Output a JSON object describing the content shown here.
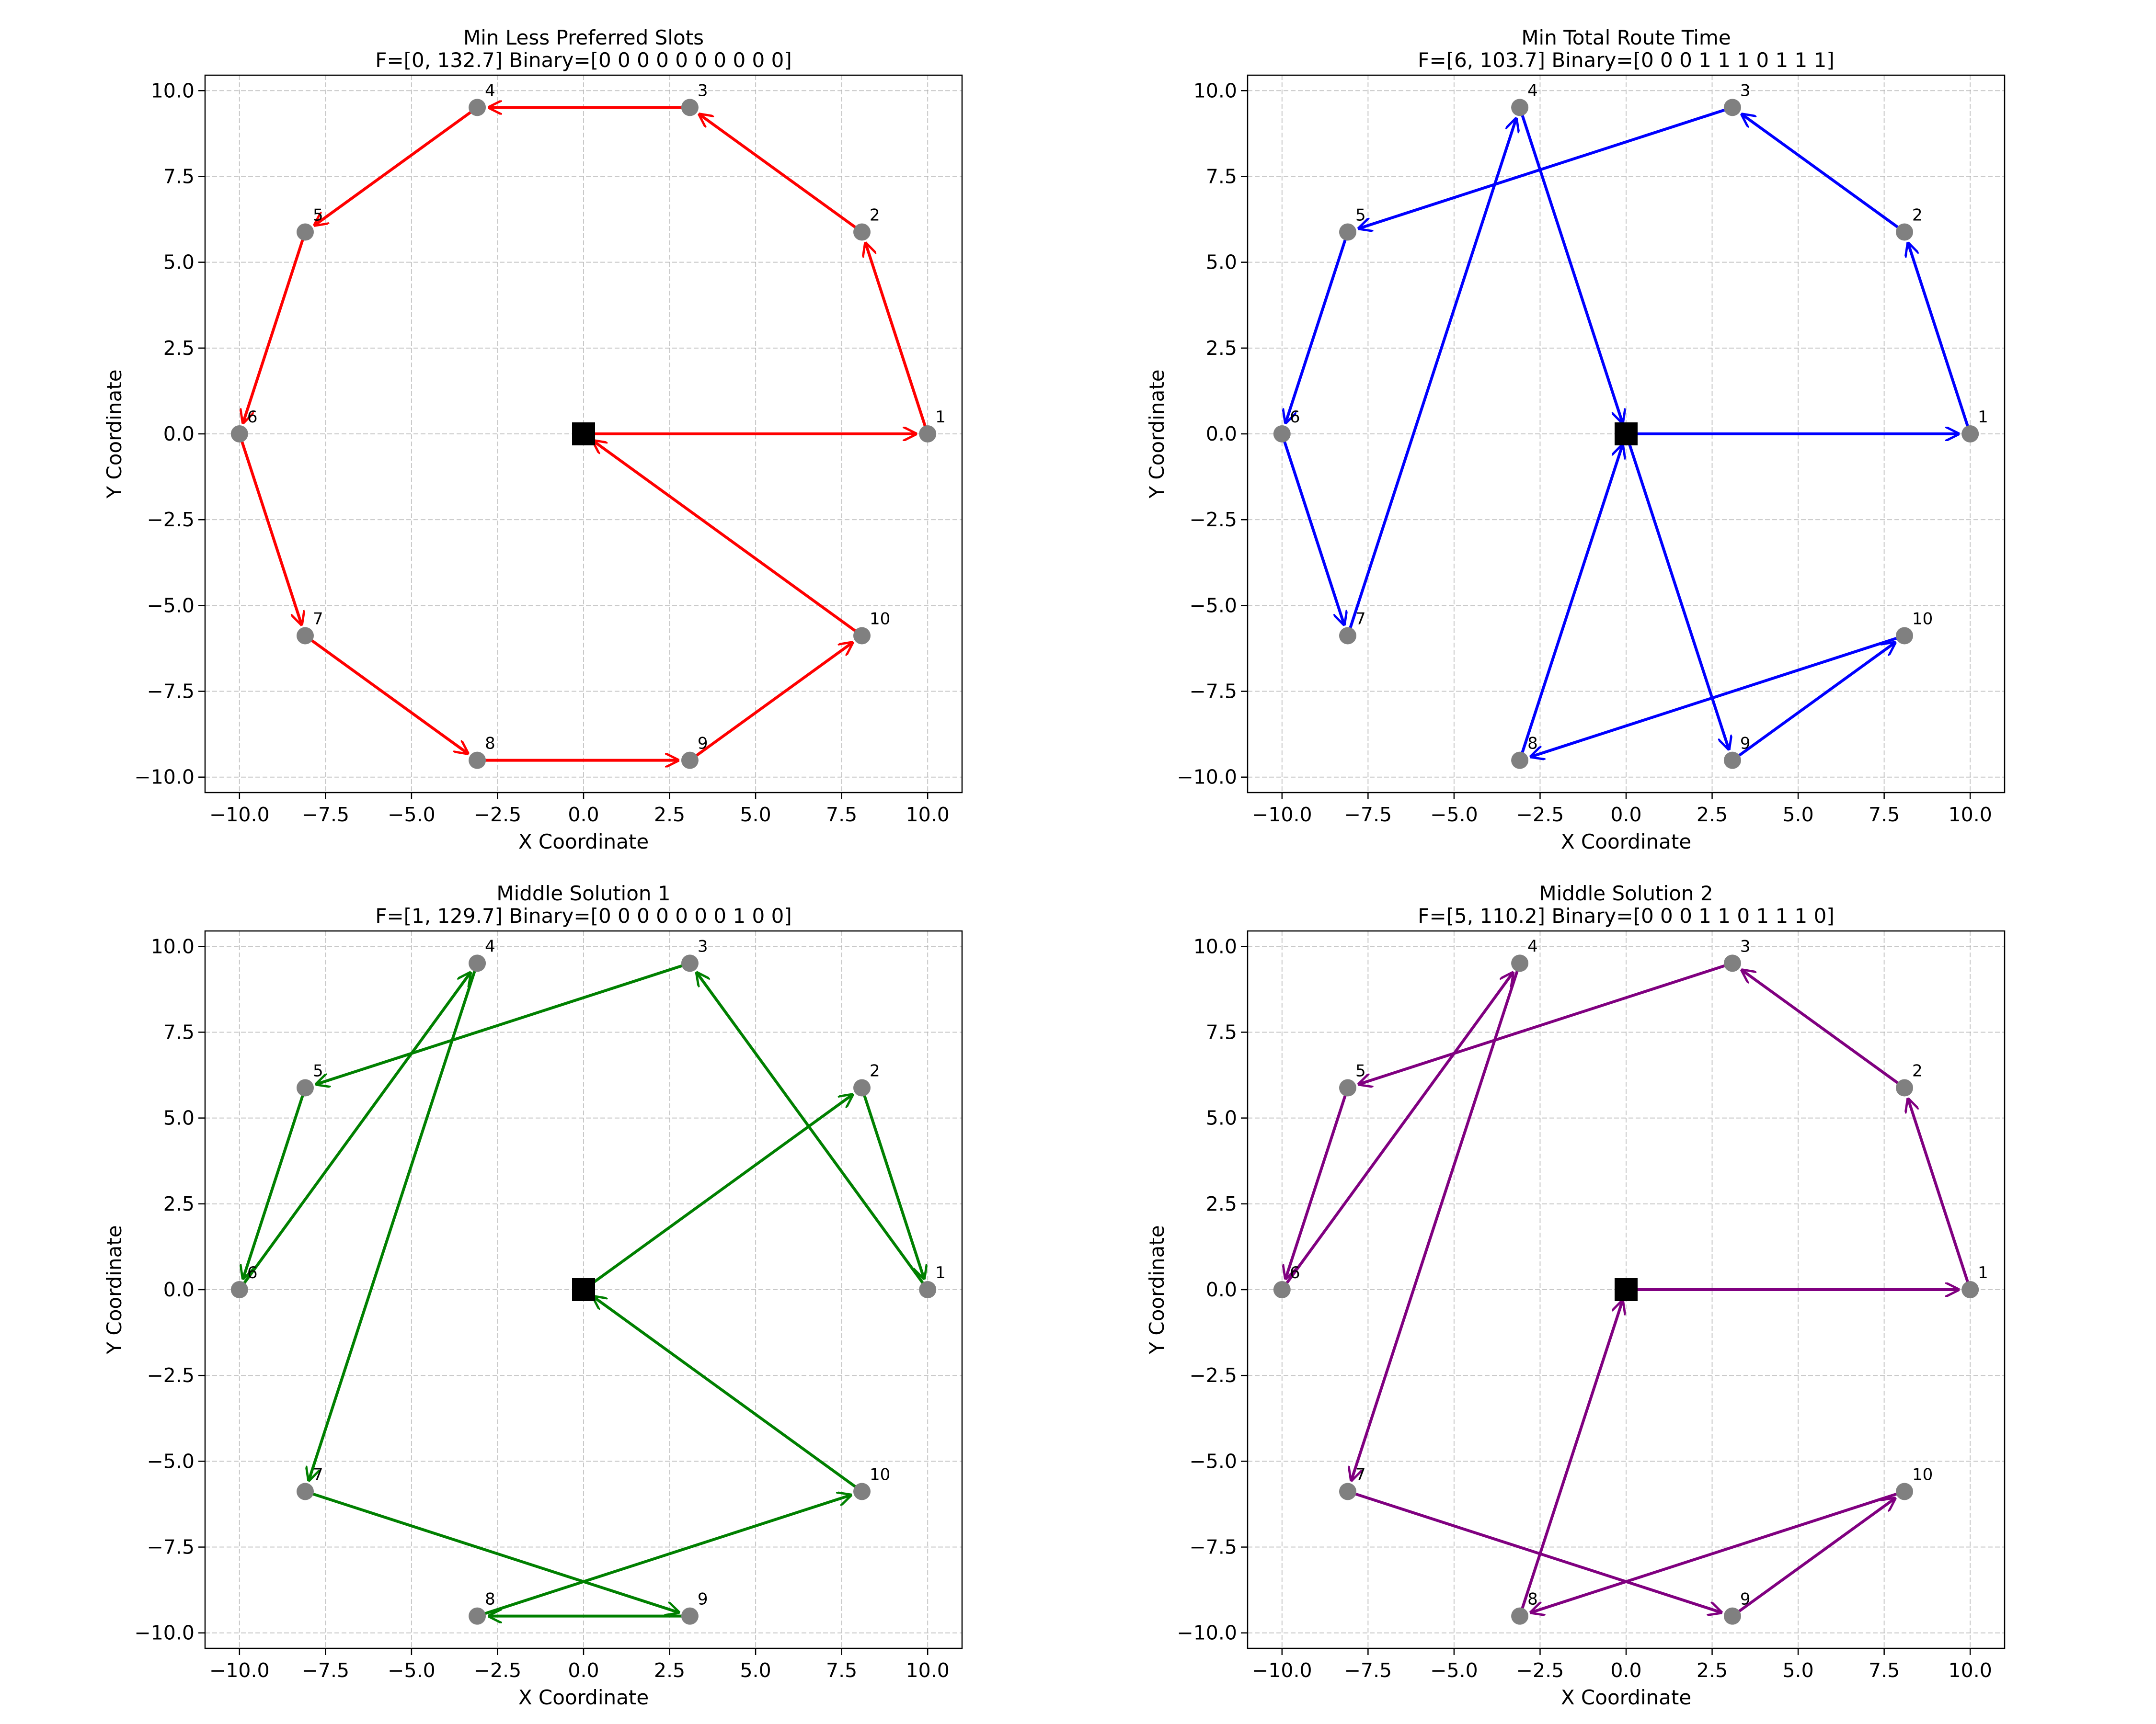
{
  "chart_data": [
    {
      "type": "scatter",
      "title": "Min Less Preferred Slots",
      "subtitle": "F=[0, 132.7] Binary=[0 0 0 0 0 0 0 0 0 0]",
      "xlabel": "X Coordinate",
      "ylabel": "Y Coordinate",
      "xlim": [
        -11,
        11
      ],
      "ylim": [
        -10.45,
        10.45
      ],
      "xticks": [
        -10,
        -7.5,
        -5,
        -2.5,
        0,
        2.5,
        5,
        7.5,
        10
      ],
      "yticks": [
        -10,
        -7.5,
        -5,
        -2.5,
        0,
        2.5,
        5,
        7.5,
        10
      ],
      "grid": true,
      "route_color": "#ff0000",
      "depot": {
        "x": 0,
        "y": 0
      },
      "customers": [
        {
          "label": "1",
          "x": 10.0,
          "y": 0.0
        },
        {
          "label": "2",
          "x": 8.09,
          "y": 5.88
        },
        {
          "label": "3",
          "x": 3.09,
          "y": 9.51
        },
        {
          "label": "4",
          "x": -3.09,
          "y": 9.51
        },
        {
          "label": "5",
          "x": -8.09,
          "y": 5.88
        },
        {
          "label": "6",
          "x": -10.0,
          "y": 0.0
        },
        {
          "label": "7",
          "x": -8.09,
          "y": -5.88
        },
        {
          "label": "8",
          "x": -3.09,
          "y": -9.51
        },
        {
          "label": "9",
          "x": 3.09,
          "y": -9.51
        },
        {
          "label": "10",
          "x": 8.09,
          "y": -5.88
        }
      ],
      "route": [
        0,
        1,
        2,
        3,
        4,
        5,
        6,
        7,
        8,
        9,
        10,
        0
      ]
    },
    {
      "type": "scatter",
      "title": "Min Total Route Time",
      "subtitle": "F=[6, 103.7] Binary=[0 0 0 1 1 1 0 1 1 1]",
      "xlabel": "X Coordinate",
      "ylabel": "Y Coordinate",
      "xlim": [
        -11,
        11
      ],
      "ylim": [
        -10.45,
        10.45
      ],
      "xticks": [
        -10,
        -7.5,
        -5,
        -2.5,
        0,
        2.5,
        5,
        7.5,
        10
      ],
      "yticks": [
        -10,
        -7.5,
        -5,
        -2.5,
        0,
        2.5,
        5,
        7.5,
        10
      ],
      "grid": true,
      "route_color": "#0000ff",
      "depot": {
        "x": 0,
        "y": 0
      },
      "customers": [
        {
          "label": "1",
          "x": 10.0,
          "y": 0.0
        },
        {
          "label": "2",
          "x": 8.09,
          "y": 5.88
        },
        {
          "label": "3",
          "x": 3.09,
          "y": 9.51
        },
        {
          "label": "4",
          "x": -3.09,
          "y": 9.51
        },
        {
          "label": "5",
          "x": -8.09,
          "y": 5.88
        },
        {
          "label": "6",
          "x": -10.0,
          "y": 0.0
        },
        {
          "label": "7",
          "x": -8.09,
          "y": -5.88
        },
        {
          "label": "8",
          "x": -3.09,
          "y": -9.51
        },
        {
          "label": "9",
          "x": 3.09,
          "y": -9.51
        },
        {
          "label": "10",
          "x": 8.09,
          "y": -5.88
        }
      ],
      "route": [
        0,
        1,
        2,
        3,
        5,
        6,
        7,
        4,
        0,
        9,
        10,
        8,
        0
      ]
    },
    {
      "type": "scatter",
      "title": "Middle Solution 1",
      "subtitle": "F=[1, 129.7] Binary=[0 0 0 0 0 0 0 1 0 0]",
      "xlabel": "X Coordinate",
      "ylabel": "Y Coordinate",
      "xlim": [
        -11,
        11
      ],
      "ylim": [
        -10.45,
        10.45
      ],
      "xticks": [
        -10,
        -7.5,
        -5,
        -2.5,
        0,
        2.5,
        5,
        7.5,
        10
      ],
      "yticks": [
        -10,
        -7.5,
        -5,
        -2.5,
        0,
        2.5,
        5,
        7.5,
        10
      ],
      "grid": true,
      "route_color": "#008000",
      "depot": {
        "x": 0,
        "y": 0
      },
      "customers": [
        {
          "label": "1",
          "x": 10.0,
          "y": 0.0
        },
        {
          "label": "2",
          "x": 8.09,
          "y": 5.88
        },
        {
          "label": "3",
          "x": 3.09,
          "y": 9.51
        },
        {
          "label": "4",
          "x": -3.09,
          "y": 9.51
        },
        {
          "label": "5",
          "x": -8.09,
          "y": 5.88
        },
        {
          "label": "6",
          "x": -10.0,
          "y": 0.0
        },
        {
          "label": "7",
          "x": -8.09,
          "y": -5.88
        },
        {
          "label": "8",
          "x": -3.09,
          "y": -9.51
        },
        {
          "label": "9",
          "x": 3.09,
          "y": -9.51
        },
        {
          "label": "10",
          "x": 8.09,
          "y": -5.88
        }
      ],
      "route": [
        0,
        2,
        1,
        3,
        5,
        6,
        4,
        7,
        9,
        8,
        10,
        0
      ]
    },
    {
      "type": "scatter",
      "title": "Middle Solution 2",
      "subtitle": "F=[5, 110.2] Binary=[0 0 0 1 1 0 1 1 1 0]",
      "xlabel": "X Coordinate",
      "ylabel": "Y Coordinate",
      "xlim": [
        -11,
        11
      ],
      "ylim": [
        -10.45,
        10.45
      ],
      "xticks": [
        -10,
        -7.5,
        -5,
        -2.5,
        0,
        2.5,
        5,
        7.5,
        10
      ],
      "yticks": [
        -10,
        -7.5,
        -5,
        -2.5,
        0,
        2.5,
        5,
        7.5,
        10
      ],
      "grid": true,
      "route_color": "#800080",
      "depot": {
        "x": 0,
        "y": 0
      },
      "customers": [
        {
          "label": "1",
          "x": 10.0,
          "y": 0.0
        },
        {
          "label": "2",
          "x": 8.09,
          "y": 5.88
        },
        {
          "label": "3",
          "x": 3.09,
          "y": 9.51
        },
        {
          "label": "4",
          "x": -3.09,
          "y": 9.51
        },
        {
          "label": "5",
          "x": -8.09,
          "y": 5.88
        },
        {
          "label": "6",
          "x": -10.0,
          "y": 0.0
        },
        {
          "label": "7",
          "x": -8.09,
          "y": -5.88
        },
        {
          "label": "8",
          "x": -3.09,
          "y": -9.51
        },
        {
          "label": "9",
          "x": 3.09,
          "y": -9.51
        },
        {
          "label": "10",
          "x": 8.09,
          "y": -5.88
        }
      ],
      "route": [
        0,
        1,
        2,
        3,
        5,
        6,
        4,
        7,
        9,
        10,
        8,
        0
      ]
    }
  ]
}
